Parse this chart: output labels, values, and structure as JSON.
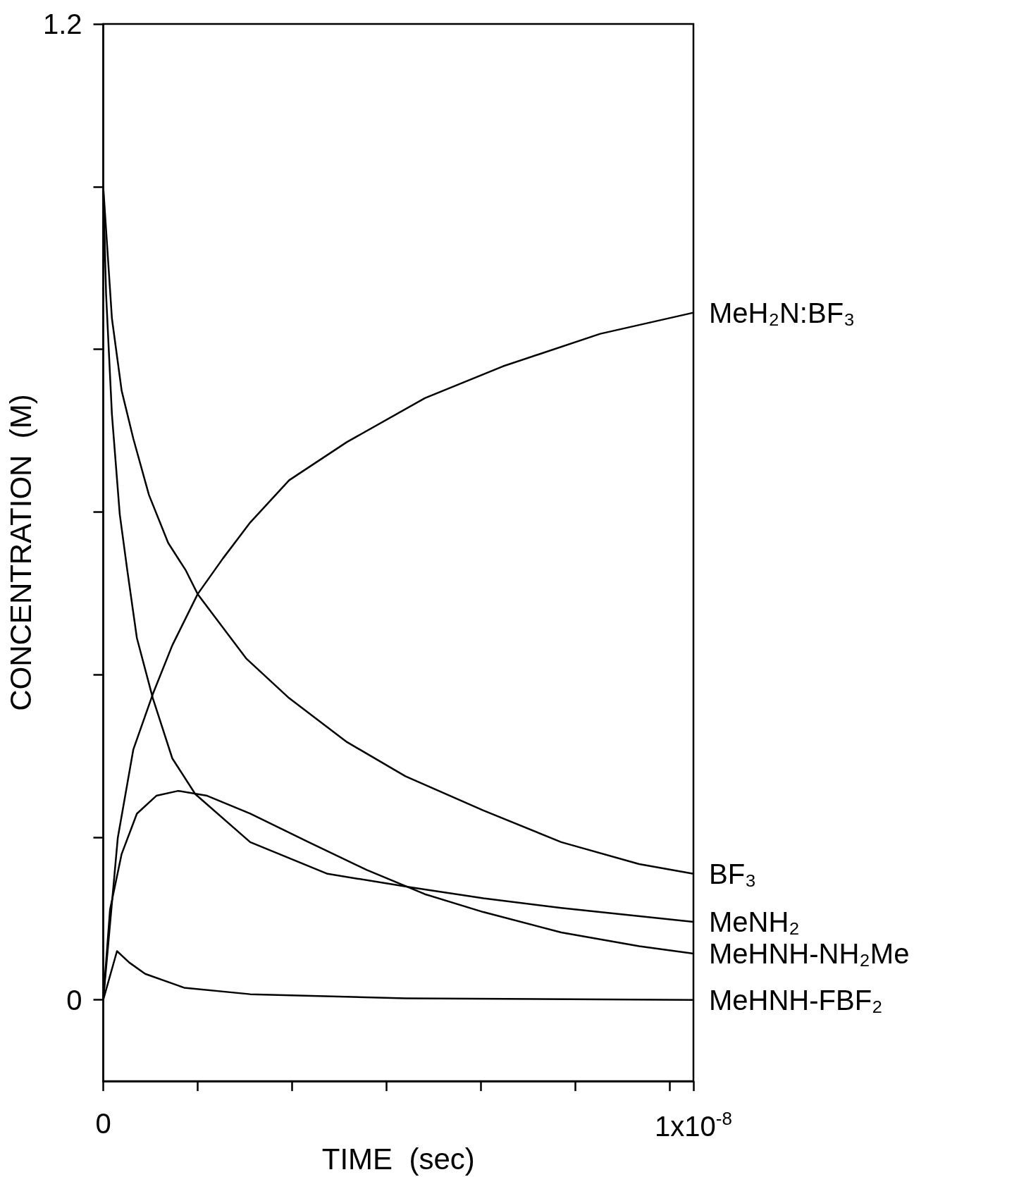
{
  "chart_data": {
    "type": "line",
    "xlabel": "TIME  (sec)",
    "ylabel": "CONCENTRATION  (M)",
    "xlim": [
      0,
      1e-08
    ],
    "ylim": [
      -0.1,
      1.2
    ],
    "xticks": [
      0,
      {
        "value": 1.6e-09,
        "label": null
      },
      {
        "value": 3.2e-09,
        "label": null
      },
      {
        "value": 4.8e-09,
        "label": null
      },
      {
        "value": 6.4e-09,
        "label": null
      },
      {
        "value": 8e-09,
        "label": null
      },
      {
        "value": 9.6e-09,
        "label": null
      },
      {
        "value": 1e-08,
        "label": "1x10$^{-8}$"
      }
    ],
    "yticks": [
      0,
      {
        "value": 0.2,
        "label": null
      },
      {
        "value": 0.4,
        "label": null
      },
      {
        "value": 0.6,
        "label": null
      },
      {
        "value": 0.8,
        "label": null
      },
      {
        "value": 1.0,
        "label": null
      },
      1.2
    ],
    "grid": false,
    "legend": false,
    "marker": "none",
    "line_style": "solid",
    "series": [
      {
        "name": "MeH₂N:BF₃",
        "color": "#000000",
        "x": [
          0,
          2.46e-10,
          5.1e-10,
          8.4e-10,
          1.17e-09,
          1.6e-09,
          2.03e-09,
          2.49e-09,
          3.15e-09,
          4.13e-09,
          5.45e-09,
          6.77e-09,
          8.42e-09,
          1e-08
        ],
        "values": [
          0,
          0.199,
          0.308,
          0.376,
          0.436,
          0.499,
          0.543,
          0.587,
          0.639,
          0.686,
          0.74,
          0.779,
          0.819,
          0.845
        ]
      },
      {
        "name": "BF₃",
        "color": "#000000",
        "x": [
          0,
          1.47e-10,
          3.12e-10,
          5.1e-10,
          7.74e-10,
          1.1e-09,
          1.4e-09,
          1.6e-09,
          2.42e-09,
          3.15e-09,
          4.13e-09,
          5.12e-09,
          6.44e-09,
          7.76e-09,
          9.08e-09,
          1e-08
        ],
        "values": [
          1.0,
          0.838,
          0.749,
          0.69,
          0.621,
          0.562,
          0.528,
          0.499,
          0.42,
          0.371,
          0.317,
          0.275,
          0.233,
          0.194,
          0.167,
          0.155
        ]
      },
      {
        "name": "MeNH₂",
        "color": "#000000",
        "x": [
          0,
          4.8e-11,
          1.47e-10,
          2.8e-10,
          4.1e-10,
          5.7e-10,
          8.4e-10,
          1.17e-09,
          1.56e-09,
          2.49e-09,
          3.8e-09,
          5.25e-09,
          6.44e-09,
          7.76e-09,
          1e-08
        ],
        "values": [
          1.0,
          0.868,
          0.72,
          0.597,
          0.527,
          0.445,
          0.371,
          0.297,
          0.253,
          0.194,
          0.155,
          0.138,
          0.125,
          0.113,
          0.096
        ]
      },
      {
        "name": "MeHNH-NH₂Me",
        "color": "#000000",
        "x": [
          0,
          1.15e-10,
          3.1e-10,
          5.7e-10,
          9e-10,
          1.27e-09,
          1.76e-09,
          2.49e-09,
          3.48e-09,
          4.46e-09,
          5.45e-09,
          6.44e-09,
          7.76e-09,
          9.08e-09,
          1e-08
        ],
        "values": [
          0,
          0.111,
          0.179,
          0.229,
          0.251,
          0.257,
          0.251,
          0.229,
          0.194,
          0.16,
          0.13,
          0.108,
          0.083,
          0.066,
          0.057
        ]
      },
      {
        "name": "MeHNH-FBF₂",
        "color": "#000000",
        "x": [
          0,
          2.33e-10,
          4.4e-10,
          7.1e-10,
          1.37e-09,
          2.49e-09,
          5.12e-09,
          1e-08
        ],
        "values": [
          0,
          0.06,
          0.046,
          0.032,
          0.015,
          0.007,
          0.002,
          0
        ]
      }
    ]
  }
}
